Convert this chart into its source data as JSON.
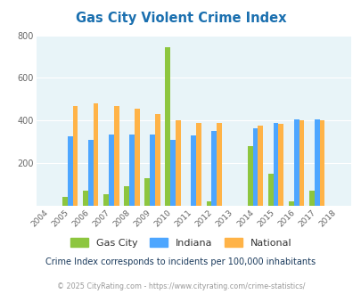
{
  "title": "Gas City Violent Crime Index",
  "years": [
    2004,
    2005,
    2006,
    2007,
    2008,
    2009,
    2010,
    2011,
    2012,
    2013,
    2014,
    2015,
    2016,
    2017,
    2018
  ],
  "gas_city": [
    null,
    40,
    70,
    55,
    90,
    130,
    745,
    null,
    20,
    null,
    280,
    150,
    20,
    70,
    null
  ],
  "indiana": [
    null,
    325,
    310,
    335,
    335,
    335,
    310,
    330,
    350,
    null,
    365,
    390,
    405,
    405,
    null
  ],
  "national": [
    null,
    470,
    480,
    470,
    455,
    430,
    400,
    390,
    390,
    null,
    375,
    385,
    400,
    400,
    null
  ],
  "gas_city_color": "#8dc63f",
  "indiana_color": "#4da6ff",
  "national_color": "#ffb347",
  "bg_color": "#e8f4f8",
  "ylim": [
    0,
    800
  ],
  "yticks": [
    0,
    200,
    400,
    600,
    800
  ],
  "subtitle": "Crime Index corresponds to incidents per 100,000 inhabitants",
  "footer": "© 2025 CityRating.com - https://www.cityrating.com/crime-statistics/",
  "title_color": "#1a6faf",
  "subtitle_color": "#1a3a5c",
  "footer_color": "#999999",
  "legend_labels": [
    "Gas City",
    "Indiana",
    "National"
  ]
}
